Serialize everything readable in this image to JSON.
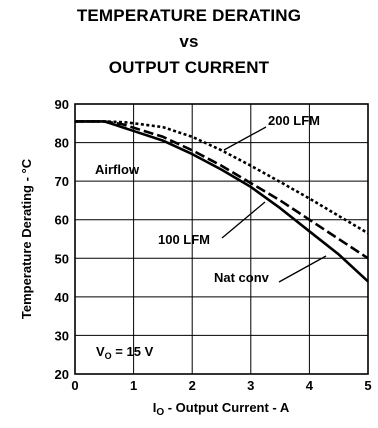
{
  "chart_data": {
    "type": "line",
    "title_lines": [
      "TEMPERATURE DERATING",
      "vs",
      "OUTPUT CURRENT"
    ],
    "xlabel_main": "I",
    "xlabel_sub": "O",
    "xlabel_rest": " - Output Current - A",
    "ylabel": "Temperature Derating - °C",
    "xlim": [
      0,
      5
    ],
    "ylim": [
      20,
      90
    ],
    "x_ticks": [
      "0",
      "1",
      "2",
      "3",
      "4",
      "5"
    ],
    "y_ticks": [
      "20",
      "30",
      "40",
      "50",
      "60",
      "70",
      "80",
      "90"
    ],
    "grid": true,
    "annotation_airflow": "Airflow",
    "annotation_vo_main": "V",
    "annotation_vo_sub": "O",
    "annotation_vo_rest": " = 15 V",
    "series": [
      {
        "name": "200 LFM",
        "style": "dotted",
        "x": [
          0,
          0.5,
          0.9,
          1.5,
          2,
          2.5,
          3,
          3.5,
          4,
          4.5,
          5
        ],
        "y": [
          85.5,
          85.5,
          85.2,
          84,
          81.5,
          78,
          74,
          69.8,
          65.5,
          61,
          56.5
        ]
      },
      {
        "name": "100 LFM",
        "style": "dashed",
        "x": [
          0,
          0.5,
          0.8,
          1.5,
          2,
          2.5,
          3,
          3.5,
          4,
          4.5,
          5
        ],
        "y": [
          85.5,
          85.5,
          84.8,
          81.5,
          78,
          74,
          69.5,
          65,
          60,
          55,
          50
        ]
      },
      {
        "name": "Nat conv",
        "style": "solid",
        "x": [
          0,
          0.5,
          0.7,
          1.5,
          2,
          2.5,
          3,
          3.5,
          4,
          4.5,
          5
        ],
        "y": [
          85.5,
          85.5,
          84.5,
          80.5,
          77,
          73,
          68.5,
          63,
          57,
          51,
          44
        ]
      }
    ]
  }
}
